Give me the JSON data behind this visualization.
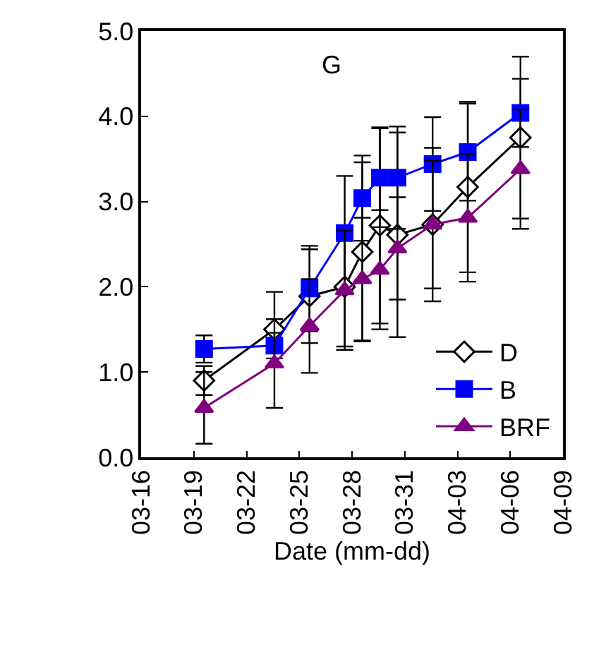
{
  "chart_data": {
    "type": "line",
    "xlabel": "Date (mm-dd)",
    "annotations": [
      "G"
    ],
    "x": [
      "--03-19T14:00",
      "--03-23T14:00",
      "--03-25T14:00",
      "--03-27T14:00",
      "--03-28T14:00",
      "--03-29T14:00",
      "--03-30T14:00",
      "--04-01T14:00",
      "--04-03T14:00",
      "--04-06T14:00"
    ],
    "series": [
      {
        "name": "D",
        "color": "#000000",
        "marker": "diamond",
        "values": [
          0.9,
          1.5,
          1.89,
          2.0,
          2.41,
          2.72,
          2.61,
          2.73,
          3.17,
          3.75
        ],
        "errors": [
          0.17,
          0.44,
          0.55,
          0.7,
          1.05,
          1.15,
          1.2,
          0.9,
          1.0,
          0.95
        ]
      },
      {
        "name": "B",
        "color": "#0000ff",
        "marker": "square",
        "values": [
          1.27,
          1.31,
          1.98,
          2.63,
          3.04,
          3.28,
          3.28,
          3.44,
          3.58,
          4.04
        ],
        "errors": [
          0.16,
          0.15,
          0.5,
          0.67,
          0.5,
          0.58,
          0.6,
          0.55,
          0.57,
          0.4
        ]
      },
      {
        "name": "BRF",
        "color": "#800080",
        "marker": "triangle",
        "values": [
          0.58,
          1.1,
          1.54,
          1.96,
          2.09,
          2.2,
          2.45,
          2.73,
          2.81,
          3.38
        ],
        "errors": [
          0.42,
          0.52,
          0.55,
          0.7,
          0.72,
          0.7,
          0.6,
          0.75,
          0.75,
          0.7
        ]
      }
    ],
    "xlim": [
      "--03-16",
      "--04-09"
    ],
    "xticks": [
      {
        "value": "--03-16",
        "label": "03-16"
      },
      {
        "value": "--03-19",
        "label": "03-19"
      },
      {
        "value": "--03-22",
        "label": "03-22"
      },
      {
        "value": "--03-25",
        "label": "03-25"
      },
      {
        "value": "--03-28",
        "label": "03-28"
      },
      {
        "value": "--03-31",
        "label": "03-31"
      },
      {
        "value": "--04-03",
        "label": "04-03"
      },
      {
        "value": "--04-06",
        "label": "04-06"
      },
      {
        "value": "--04-09",
        "label": "04-09"
      }
    ],
    "ylim": [
      0,
      5
    ],
    "yticks": [
      {
        "value": 0,
        "label": "0.0"
      },
      {
        "value": 1,
        "label": "1.0"
      },
      {
        "value": 2,
        "label": "2.0"
      },
      {
        "value": 3,
        "label": "3.0"
      },
      {
        "value": 4,
        "label": "4.0"
      },
      {
        "value": 5,
        "label": "5.0"
      }
    ],
    "legend": "bottom right",
    "line_style": "solid"
  }
}
